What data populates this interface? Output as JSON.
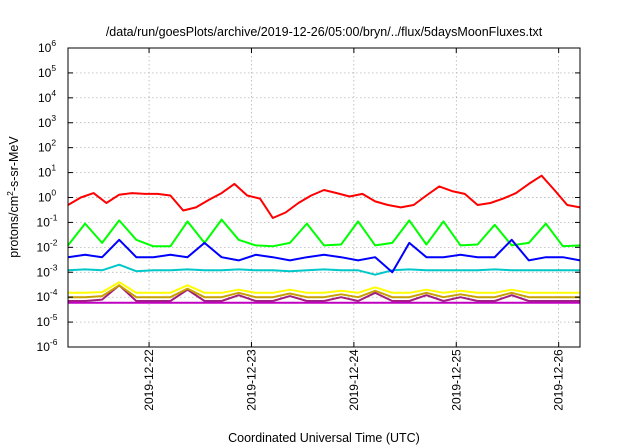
{
  "chart_data": {
    "type": "line",
    "title": "/data/run/goesPlots/archive/2019-12-26/05:00/bryn/../flux/5daysMoonFluxes.txt",
    "xlabel": "Coordinated Universal Time (UTC)",
    "ylabel": {
      "prefix": "protons/cm",
      "superscript": "2",
      "suffix": "-s-sr-MeV"
    },
    "y_scale": "log",
    "ylim": [
      1e-06,
      1000000.0
    ],
    "yticks": [
      {
        "base": "10",
        "exp": "-6",
        "value": 1e-06
      },
      {
        "base": "10",
        "exp": "-5",
        "value": 1e-05
      },
      {
        "base": "10",
        "exp": "-4",
        "value": 0.0001
      },
      {
        "base": "10",
        "exp": "-3",
        "value": 0.001
      },
      {
        "base": "10",
        "exp": "-2",
        "value": 0.01
      },
      {
        "base": "10",
        "exp": "-1",
        "value": 0.1
      },
      {
        "base": "10",
        "exp": "0",
        "value": 1
      },
      {
        "base": "10",
        "exp": "1",
        "value": 10
      },
      {
        "base": "10",
        "exp": "2",
        "value": 100
      },
      {
        "base": "10",
        "exp": "3",
        "value": 1000
      },
      {
        "base": "10",
        "exp": "4",
        "value": 10000
      },
      {
        "base": "10",
        "exp": "5",
        "value": 100000
      },
      {
        "base": "10",
        "exp": "6",
        "value": 1000000
      }
    ],
    "xlim": [
      "2019-12-21 05:00",
      "2019-12-26 05:00"
    ],
    "xticks": [
      "2019-12-22",
      "2019-12-23",
      "2019-12-24",
      "2019-12-25",
      "2019-12-26"
    ],
    "grid": true,
    "legend": "none",
    "colors": {
      "red": "#ff0000",
      "green": "#00ff00",
      "blue": "#0000ff",
      "cyan": "#00c8c8",
      "yellow": "#ffff00",
      "gold": "#c8a000",
      "purple": "#a02080",
      "magenta": "#c000c0"
    },
    "series": [
      {
        "color": "#ff0000",
        "x": [
          "2019-12-21 05:00",
          "2019-12-21 08:00",
          "2019-12-21 11:00",
          "2019-12-21 14:00",
          "2019-12-21 17:00",
          "2019-12-21 20:00",
          "2019-12-21 23:00",
          "2019-12-22 02:00",
          "2019-12-22 05:00",
          "2019-12-22 08:00",
          "2019-12-22 11:00",
          "2019-12-22 14:00",
          "2019-12-22 17:00",
          "2019-12-22 20:00",
          "2019-12-22 23:00",
          "2019-12-23 02:00",
          "2019-12-23 05:00",
          "2019-12-23 08:00",
          "2019-12-23 11:00",
          "2019-12-23 14:00",
          "2019-12-23 17:00",
          "2019-12-23 20:00",
          "2019-12-23 23:00",
          "2019-12-24 02:00",
          "2019-12-24 05:00",
          "2019-12-24 08:00",
          "2019-12-24 11:00",
          "2019-12-24 14:00",
          "2019-12-24 17:00",
          "2019-12-24 20:00",
          "2019-12-24 23:00",
          "2019-12-25 02:00",
          "2019-12-25 05:00",
          "2019-12-25 08:00",
          "2019-12-25 11:00",
          "2019-12-25 14:00",
          "2019-12-25 17:00",
          "2019-12-25 20:00",
          "2019-12-25 23:00",
          "2019-12-26 02:00",
          "2019-12-26 05:00"
        ],
        "y": [
          0.5,
          1.0,
          1.5,
          0.6,
          1.3,
          1.5,
          1.4,
          1.4,
          1.2,
          0.3,
          0.4,
          0.8,
          1.5,
          3.5,
          1.2,
          0.9,
          0.15,
          0.25,
          0.6,
          1.2,
          2.0,
          1.5,
          1.1,
          1.4,
          0.7,
          0.5,
          0.4,
          0.5,
          1.2,
          2.8,
          1.8,
          1.4,
          0.5,
          0.6,
          0.9,
          1.5,
          3.5,
          7.5,
          2.0,
          0.5,
          0.4
        ]
      },
      {
        "color": "#00ff00",
        "x": [
          "2019-12-21 05:00",
          "2019-12-21 09:00",
          "2019-12-21 13:00",
          "2019-12-21 17:00",
          "2019-12-21 21:00",
          "2019-12-22 01:00",
          "2019-12-22 05:00",
          "2019-12-22 09:00",
          "2019-12-22 13:00",
          "2019-12-22 17:00",
          "2019-12-22 21:00",
          "2019-12-23 01:00",
          "2019-12-23 05:00",
          "2019-12-23 09:00",
          "2019-12-23 13:00",
          "2019-12-23 17:00",
          "2019-12-23 21:00",
          "2019-12-24 01:00",
          "2019-12-24 05:00",
          "2019-12-24 09:00",
          "2019-12-24 13:00",
          "2019-12-24 17:00",
          "2019-12-24 21:00",
          "2019-12-25 01:00",
          "2019-12-25 05:00",
          "2019-12-25 09:00",
          "2019-12-25 13:00",
          "2019-12-25 17:00",
          "2019-12-25 21:00",
          "2019-12-26 01:00",
          "2019-12-26 05:00"
        ],
        "y": [
          0.012,
          0.09,
          0.015,
          0.12,
          0.02,
          0.011,
          0.011,
          0.11,
          0.015,
          0.13,
          0.02,
          0.012,
          0.011,
          0.015,
          0.09,
          0.012,
          0.013,
          0.11,
          0.012,
          0.015,
          0.12,
          0.013,
          0.11,
          0.012,
          0.013,
          0.08,
          0.012,
          0.015,
          0.09,
          0.011,
          0.012
        ]
      },
      {
        "color": "#0000ff",
        "x": [
          "2019-12-21 05:00",
          "2019-12-21 09:00",
          "2019-12-21 13:00",
          "2019-12-21 17:00",
          "2019-12-21 21:00",
          "2019-12-22 01:00",
          "2019-12-22 05:00",
          "2019-12-22 09:00",
          "2019-12-22 13:00",
          "2019-12-22 17:00",
          "2019-12-22 21:00",
          "2019-12-23 01:00",
          "2019-12-23 05:00",
          "2019-12-23 09:00",
          "2019-12-23 13:00",
          "2019-12-23 17:00",
          "2019-12-23 21:00",
          "2019-12-24 01:00",
          "2019-12-24 05:00",
          "2019-12-24 09:00",
          "2019-12-24 13:00",
          "2019-12-24 17:00",
          "2019-12-24 21:00",
          "2019-12-25 01:00",
          "2019-12-25 05:00",
          "2019-12-25 09:00",
          "2019-12-25 13:00",
          "2019-12-25 17:00",
          "2019-12-25 21:00",
          "2019-12-26 01:00",
          "2019-12-26 05:00"
        ],
        "y": [
          0.004,
          0.005,
          0.004,
          0.02,
          0.004,
          0.004,
          0.005,
          0.004,
          0.015,
          0.004,
          0.003,
          0.005,
          0.004,
          0.003,
          0.004,
          0.005,
          0.004,
          0.003,
          0.004,
          0.001,
          0.015,
          0.004,
          0.004,
          0.005,
          0.004,
          0.004,
          0.02,
          0.003,
          0.004,
          0.004,
          0.003
        ]
      },
      {
        "color": "#00c8c8",
        "x": [
          "2019-12-21 05:00",
          "2019-12-21 09:00",
          "2019-12-21 13:00",
          "2019-12-21 17:00",
          "2019-12-21 21:00",
          "2019-12-22 01:00",
          "2019-12-22 05:00",
          "2019-12-22 09:00",
          "2019-12-22 13:00",
          "2019-12-22 17:00",
          "2019-12-22 21:00",
          "2019-12-23 01:00",
          "2019-12-23 05:00",
          "2019-12-23 09:00",
          "2019-12-23 13:00",
          "2019-12-23 17:00",
          "2019-12-23 21:00",
          "2019-12-24 01:00",
          "2019-12-24 05:00",
          "2019-12-24 09:00",
          "2019-12-24 13:00",
          "2019-12-24 17:00",
          "2019-12-24 21:00",
          "2019-12-25 01:00",
          "2019-12-25 05:00",
          "2019-12-25 09:00",
          "2019-12-25 13:00",
          "2019-12-25 17:00",
          "2019-12-25 21:00",
          "2019-12-26 01:00",
          "2019-12-26 05:00"
        ],
        "y": [
          0.0012,
          0.0013,
          0.0012,
          0.002,
          0.0011,
          0.0012,
          0.0012,
          0.0013,
          0.0012,
          0.0012,
          0.0013,
          0.0012,
          0.0012,
          0.0011,
          0.0012,
          0.0013,
          0.0012,
          0.0012,
          0.0008,
          0.0012,
          0.0013,
          0.0012,
          0.0012,
          0.0012,
          0.0012,
          0.0013,
          0.0012,
          0.0012,
          0.0012,
          0.0012,
          0.0012
        ]
      },
      {
        "color": "#ffff00",
        "x": [
          "2019-12-21 05:00",
          "2019-12-21 09:00",
          "2019-12-21 13:00",
          "2019-12-21 17:00",
          "2019-12-21 21:00",
          "2019-12-22 01:00",
          "2019-12-22 05:00",
          "2019-12-22 09:00",
          "2019-12-22 13:00",
          "2019-12-22 17:00",
          "2019-12-22 21:00",
          "2019-12-23 01:00",
          "2019-12-23 05:00",
          "2019-12-23 09:00",
          "2019-12-23 13:00",
          "2019-12-23 17:00",
          "2019-12-23 21:00",
          "2019-12-24 01:00",
          "2019-12-24 05:00",
          "2019-12-24 09:00",
          "2019-12-24 13:00",
          "2019-12-24 17:00",
          "2019-12-24 21:00",
          "2019-12-25 01:00",
          "2019-12-25 05:00",
          "2019-12-25 09:00",
          "2019-12-25 13:00",
          "2019-12-25 17:00",
          "2019-12-25 21:00",
          "2019-12-26 01:00",
          "2019-12-26 05:00"
        ],
        "y": [
          0.00015,
          0.00015,
          0.00016,
          0.0004,
          0.00015,
          0.00015,
          0.00015,
          0.0003,
          0.00015,
          0.00015,
          0.0002,
          0.00015,
          0.00015,
          0.0002,
          0.00015,
          0.00015,
          0.00018,
          0.00015,
          0.00025,
          0.00015,
          0.00015,
          0.0002,
          0.00015,
          0.00018,
          0.00015,
          0.00015,
          0.0002,
          0.00015,
          0.00015,
          0.00015,
          0.00015
        ]
      },
      {
        "color": "#c8a000",
        "x": [
          "2019-12-21 05:00",
          "2019-12-21 09:00",
          "2019-12-21 13:00",
          "2019-12-21 17:00",
          "2019-12-21 21:00",
          "2019-12-22 01:00",
          "2019-12-22 05:00",
          "2019-12-22 09:00",
          "2019-12-22 13:00",
          "2019-12-22 17:00",
          "2019-12-22 21:00",
          "2019-12-23 01:00",
          "2019-12-23 05:00",
          "2019-12-23 09:00",
          "2019-12-23 13:00",
          "2019-12-23 17:00",
          "2019-12-23 21:00",
          "2019-12-24 01:00",
          "2019-12-24 05:00",
          "2019-12-24 09:00",
          "2019-12-24 13:00",
          "2019-12-24 17:00",
          "2019-12-24 21:00",
          "2019-12-25 01:00",
          "2019-12-25 05:00",
          "2019-12-25 09:00",
          "2019-12-25 13:00",
          "2019-12-25 17:00",
          "2019-12-25 21:00",
          "2019-12-26 01:00",
          "2019-12-26 05:00"
        ],
        "y": [
          0.0001,
          0.0001,
          0.00011,
          0.0003,
          0.0001,
          0.0001,
          0.0001,
          0.00022,
          0.0001,
          0.0001,
          0.00015,
          0.0001,
          0.0001,
          0.00014,
          0.0001,
          0.0001,
          0.00013,
          0.0001,
          0.00018,
          0.0001,
          0.0001,
          0.00015,
          0.0001,
          0.00013,
          0.0001,
          0.0001,
          0.00015,
          0.0001,
          0.0001,
          0.0001,
          0.0001
        ]
      },
      {
        "color": "#a02080",
        "x": [
          "2019-12-21 05:00",
          "2019-12-21 09:00",
          "2019-12-21 13:00",
          "2019-12-21 17:00",
          "2019-12-21 21:00",
          "2019-12-22 01:00",
          "2019-12-22 05:00",
          "2019-12-22 09:00",
          "2019-12-22 13:00",
          "2019-12-22 17:00",
          "2019-12-22 21:00",
          "2019-12-23 01:00",
          "2019-12-23 05:00",
          "2019-12-23 09:00",
          "2019-12-23 13:00",
          "2019-12-23 17:00",
          "2019-12-23 21:00",
          "2019-12-24 01:00",
          "2019-12-24 05:00",
          "2019-12-24 09:00",
          "2019-12-24 13:00",
          "2019-12-24 17:00",
          "2019-12-24 21:00",
          "2019-12-25 01:00",
          "2019-12-25 05:00",
          "2019-12-25 09:00",
          "2019-12-25 13:00",
          "2019-12-25 17:00",
          "2019-12-25 21:00",
          "2019-12-26 01:00",
          "2019-12-26 05:00"
        ],
        "y": [
          7e-05,
          7e-05,
          8e-05,
          0.0003,
          7e-05,
          7e-05,
          7e-05,
          0.0002,
          7e-05,
          7e-05,
          0.00012,
          7e-05,
          7e-05,
          0.00011,
          7e-05,
          7e-05,
          0.0001,
          7e-05,
          0.00015,
          7e-05,
          7e-05,
          0.00012,
          7e-05,
          0.0001,
          7e-05,
          7e-05,
          0.00012,
          7e-05,
          7e-05,
          7e-05,
          7e-05
        ]
      },
      {
        "color": "#c000c0",
        "x": [
          "2019-12-21 05:00",
          "2019-12-21 09:00",
          "2019-12-21 13:00",
          "2019-12-21 17:00",
          "2019-12-21 21:00",
          "2019-12-22 01:00",
          "2019-12-22 05:00",
          "2019-12-22 09:00",
          "2019-12-22 13:00",
          "2019-12-22 17:00",
          "2019-12-22 21:00",
          "2019-12-23 01:00",
          "2019-12-23 05:00",
          "2019-12-23 09:00",
          "2019-12-23 13:00",
          "2019-12-23 17:00",
          "2019-12-23 21:00",
          "2019-12-24 01:00",
          "2019-12-24 05:00",
          "2019-12-24 09:00",
          "2019-12-24 13:00",
          "2019-12-24 17:00",
          "2019-12-24 21:00",
          "2019-12-25 01:00",
          "2019-12-25 05:00",
          "2019-12-25 09:00",
          "2019-12-25 13:00",
          "2019-12-25 17:00",
          "2019-12-25 21:00",
          "2019-12-26 01:00",
          "2019-12-26 05:00"
        ],
        "y": [
          6e-05,
          6e-05,
          6e-05,
          6e-05,
          6e-05,
          6e-05,
          6e-05,
          6e-05,
          6e-05,
          6e-05,
          6e-05,
          6e-05,
          6e-05,
          6e-05,
          6e-05,
          6e-05,
          6e-05,
          6e-05,
          6e-05,
          6e-05,
          6e-05,
          6e-05,
          6e-05,
          6e-05,
          6e-05,
          6e-05,
          6e-05,
          6e-05,
          6e-05,
          6e-05,
          6e-05
        ]
      }
    ]
  }
}
